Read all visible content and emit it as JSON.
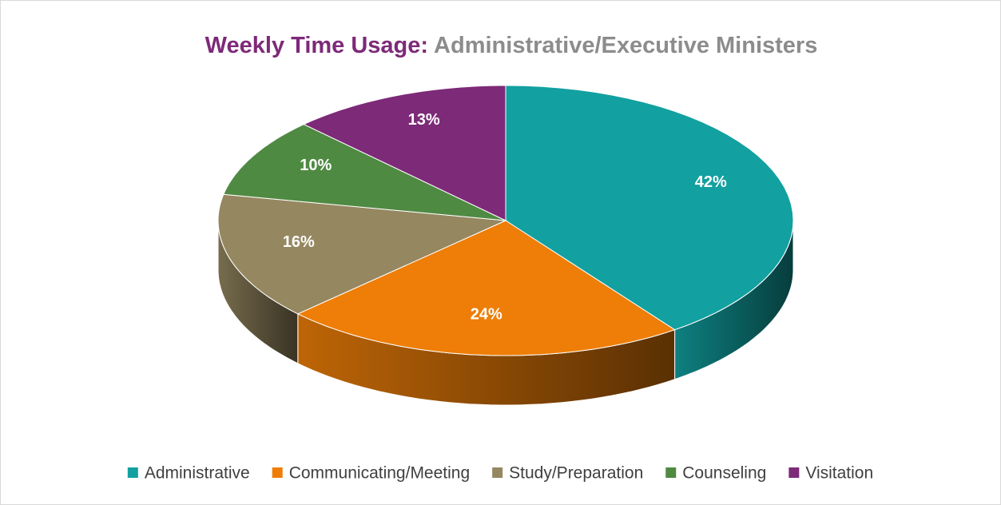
{
  "chart_data": {
    "type": "pie",
    "title": "Weekly Time Usage:",
    "subtitle": "Administrative/Executive Ministers",
    "categories": [
      "Administrative",
      "Communicating/Meeting",
      "Study/Preparation",
      "Counseling",
      "Visitation"
    ],
    "values": [
      42,
      24,
      16,
      10,
      13
    ],
    "value_labels": [
      "42%",
      "24%",
      "16%",
      "10%",
      "13%"
    ],
    "colors": [
      "#12a0a0",
      "#ee7e07",
      "#958760",
      "#4f8a42",
      "#7d2a78"
    ],
    "legend": "bottom"
  }
}
